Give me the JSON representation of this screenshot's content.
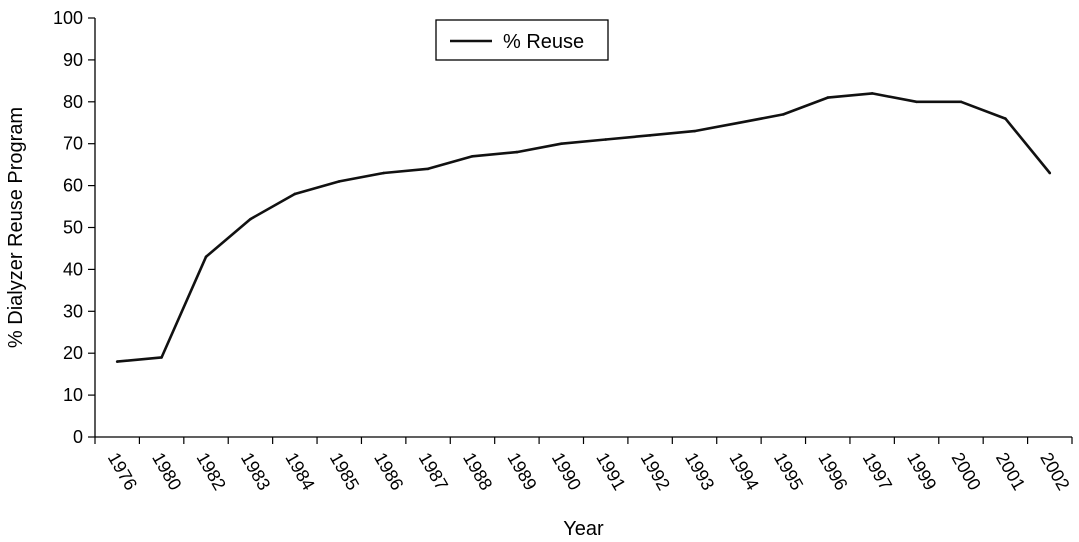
{
  "chart_data": {
    "type": "line",
    "xlabel": "Year",
    "ylabel": "% Dialyzer Reuse Program",
    "ylim": [
      0,
      100
    ],
    "yticks": [
      0,
      10,
      20,
      30,
      40,
      50,
      60,
      70,
      80,
      90,
      100
    ],
    "categories": [
      "1976",
      "1980",
      "1982",
      "1983",
      "1984",
      "1985",
      "1986",
      "1987",
      "1988",
      "1989",
      "1990",
      "1991",
      "1992",
      "1993",
      "1994",
      "1995",
      "1996",
      "1997",
      "1999",
      "2000",
      "2001",
      "2002"
    ],
    "series": [
      {
        "name": "% Reuse",
        "values": [
          18,
          19,
          43,
          52,
          58,
          61,
          63,
          64,
          67,
          68,
          70,
          71,
          72,
          73,
          75,
          77,
          81,
          82,
          80,
          80,
          76,
          63
        ]
      }
    ],
    "legend_position": "top-center",
    "grid": false
  }
}
